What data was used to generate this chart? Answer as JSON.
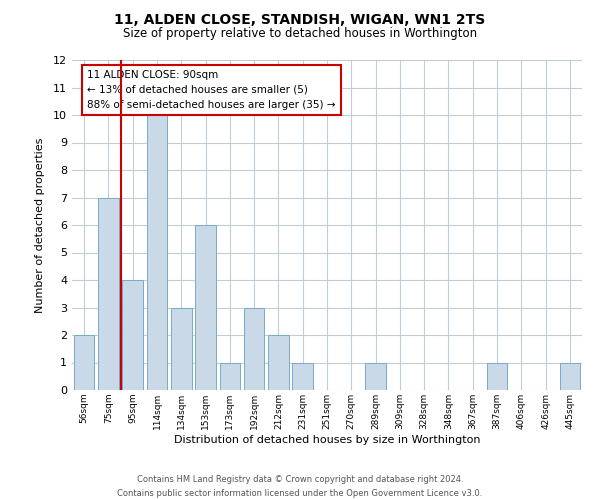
{
  "title": "11, ALDEN CLOSE, STANDISH, WIGAN, WN1 2TS",
  "subtitle": "Size of property relative to detached houses in Worthington",
  "xlabel": "Distribution of detached houses by size in Worthington",
  "ylabel": "Number of detached properties",
  "bin_labels": [
    "56sqm",
    "75sqm",
    "95sqm",
    "114sqm",
    "134sqm",
    "153sqm",
    "173sqm",
    "192sqm",
    "212sqm",
    "231sqm",
    "251sqm",
    "270sqm",
    "289sqm",
    "309sqm",
    "328sqm",
    "348sqm",
    "367sqm",
    "387sqm",
    "406sqm",
    "426sqm",
    "445sqm"
  ],
  "bar_heights": [
    2,
    7,
    4,
    10,
    3,
    6,
    1,
    3,
    2,
    1,
    0,
    0,
    1,
    0,
    0,
    0,
    0,
    1,
    0,
    0,
    1
  ],
  "bar_color": "#c9d9e8",
  "bar_edgecolor": "#7aaac8",
  "vline_x_index": 2,
  "vline_color": "#cc0000",
  "ylim": [
    0,
    12
  ],
  "yticks": [
    0,
    1,
    2,
    3,
    4,
    5,
    6,
    7,
    8,
    9,
    10,
    11,
    12
  ],
  "annotation_title": "11 ALDEN CLOSE: 90sqm",
  "annotation_line1": "← 13% of detached houses are smaller (5)",
  "annotation_line2": "88% of semi-detached houses are larger (35) →",
  "annotation_box_color": "#ffffff",
  "annotation_box_edgecolor": "#cc0000",
  "footer_line1": "Contains HM Land Registry data © Crown copyright and database right 2024.",
  "footer_line2": "Contains public sector information licensed under the Open Government Licence v3.0.",
  "background_color": "#ffffff",
  "grid_color": "#c0ccd8"
}
